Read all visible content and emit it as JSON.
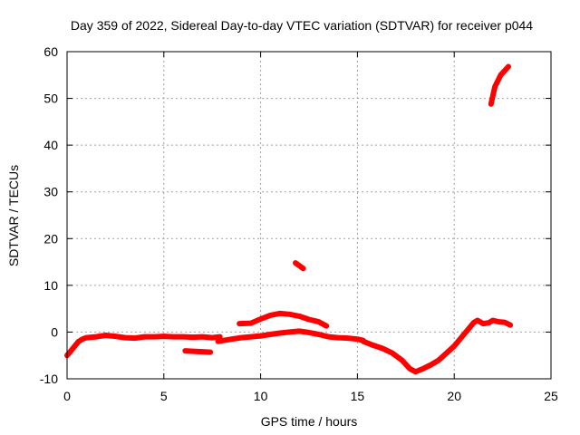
{
  "chart_data": {
    "type": "scatter",
    "title": "Day 359 of 2022, Sidereal Day-to-day VTEC variation (SDTVAR) for receiver p044",
    "xlabel": "GPS time / hours",
    "ylabel": "SDTVAR / TECUs",
    "xlim": [
      0,
      25
    ],
    "ylim": [
      -10,
      60
    ],
    "xticks": [
      0,
      5,
      10,
      15,
      20,
      25
    ],
    "yticks": [
      -10,
      0,
      10,
      20,
      30,
      40,
      50,
      60
    ],
    "grid": true,
    "legend": "none",
    "series": [
      {
        "color": "#ff0000",
        "segments": [
          [
            [
              0.0,
              -5.0
            ],
            [
              0.2,
              -4.0
            ],
            [
              0.4,
              -3.0
            ],
            [
              0.6,
              -2.0
            ],
            [
              0.8,
              -1.5
            ],
            [
              1.0,
              -1.2
            ],
            [
              1.5,
              -1.0
            ],
            [
              2.0,
              -0.7
            ],
            [
              2.5,
              -0.9
            ],
            [
              3.0,
              -1.2
            ],
            [
              3.5,
              -1.3
            ],
            [
              4.0,
              -1.0
            ],
            [
              4.5,
              -1.0
            ],
            [
              5.0,
              -0.9
            ],
            [
              5.5,
              -1.0
            ],
            [
              6.0,
              -1.0
            ],
            [
              6.5,
              -1.1
            ],
            [
              7.0,
              -1.0
            ],
            [
              7.5,
              -1.2
            ],
            [
              7.9,
              -1.0
            ]
          ],
          [
            [
              6.1,
              -4.0
            ],
            [
              6.5,
              -4.1
            ],
            [
              7.0,
              -4.2
            ],
            [
              7.4,
              -4.3
            ]
          ],
          [
            [
              7.8,
              -2.0
            ],
            [
              8.5,
              -1.5
            ],
            [
              9.0,
              -1.2
            ],
            [
              9.5,
              -1.0
            ],
            [
              10.0,
              -0.8
            ],
            [
              10.5,
              -0.5
            ],
            [
              11.0,
              -0.2
            ],
            [
              11.5,
              0.0
            ],
            [
              12.0,
              0.2
            ],
            [
              12.5,
              -0.1
            ],
            [
              13.0,
              -0.5
            ],
            [
              13.5,
              -1.0
            ],
            [
              14.0,
              -1.2
            ],
            [
              14.5,
              -1.3
            ],
            [
              15.0,
              -1.5
            ],
            [
              15.3,
              -1.8
            ]
          ],
          [
            [
              8.9,
              1.8
            ],
            [
              9.5,
              1.9
            ],
            [
              10.0,
              2.8
            ],
            [
              10.5,
              3.6
            ],
            [
              11.0,
              4.0
            ],
            [
              11.5,
              3.8
            ],
            [
              12.0,
              3.4
            ],
            [
              12.5,
              2.7
            ],
            [
              13.0,
              2.2
            ],
            [
              13.4,
              1.3
            ]
          ],
          [
            [
              11.8,
              14.8
            ],
            [
              12.0,
              14.2
            ],
            [
              12.2,
              13.6
            ]
          ],
          [
            [
              15.3,
              -2.0
            ],
            [
              15.8,
              -2.8
            ],
            [
              16.3,
              -3.5
            ],
            [
              16.8,
              -4.5
            ],
            [
              17.3,
              -6.0
            ],
            [
              17.7,
              -7.8
            ],
            [
              18.0,
              -8.5
            ],
            [
              18.4,
              -7.8
            ],
            [
              18.8,
              -7.0
            ],
            [
              19.2,
              -6.0
            ],
            [
              19.6,
              -4.5
            ],
            [
              20.0,
              -3.0
            ],
            [
              20.4,
              -1.0
            ],
            [
              20.7,
              0.5
            ],
            [
              21.0,
              2.0
            ],
            [
              21.2,
              2.5
            ],
            [
              21.5,
              1.8
            ],
            [
              21.8,
              2.0
            ],
            [
              22.0,
              2.5
            ],
            [
              22.3,
              2.2
            ],
            [
              22.6,
              2.1
            ],
            [
              22.9,
              1.5
            ]
          ],
          [
            [
              21.9,
              48.8
            ],
            [
              22.1,
              52.5
            ],
            [
              22.4,
              55.0
            ],
            [
              22.8,
              56.8
            ]
          ]
        ]
      }
    ]
  }
}
